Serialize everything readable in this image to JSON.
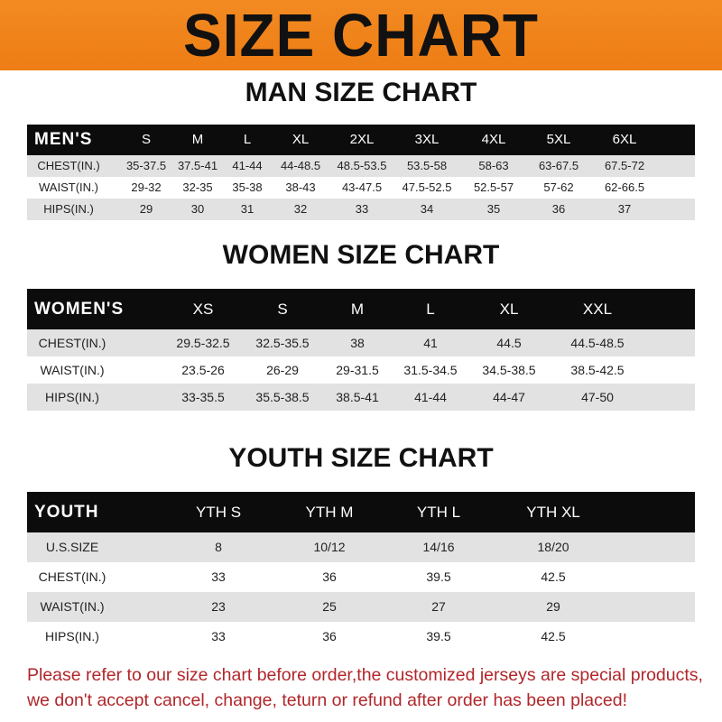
{
  "banner": {
    "title": "SIZE CHART",
    "color": "#ef8219"
  },
  "tables": [
    {
      "title": "MAN SIZE CHART",
      "header_label": "MEN'S",
      "sizes": [
        "S",
        "M",
        "L",
        "XL",
        "2XL",
        "3XL",
        "4XL",
        "5XL",
        "6XL"
      ],
      "rows": [
        {
          "label": "CHEST(IN.)",
          "values": [
            "35-37.5",
            "37.5-41",
            "41-44",
            "44-48.5",
            "48.5-53.5",
            "53.5-58",
            "58-63",
            "63-67.5",
            "67.5-72"
          ]
        },
        {
          "label": "WAIST(IN.)",
          "values": [
            "29-32",
            "32-35",
            "35-38",
            "38-43",
            "43-47.5",
            "47.5-52.5",
            "52.5-57",
            "57-62",
            "62-66.5"
          ]
        },
        {
          "label": "HIPS(IN.)",
          "values": [
            "29",
            "30",
            "31",
            "32",
            "33",
            "34",
            "35",
            "36",
            "37"
          ]
        }
      ]
    },
    {
      "title": "WOMEN SIZE CHART",
      "header_label": "WOMEN'S",
      "sizes": [
        "XS",
        "S",
        "M",
        "L",
        "XL",
        "XXL"
      ],
      "rows": [
        {
          "label": "CHEST(IN.)",
          "values": [
            "29.5-32.5",
            "32.5-35.5",
            "38",
            "41",
            "44.5",
            "44.5-48.5"
          ]
        },
        {
          "label": "WAIST(IN.)",
          "values": [
            "23.5-26",
            "26-29",
            "29-31.5",
            "31.5-34.5",
            "34.5-38.5",
            "38.5-42.5"
          ]
        },
        {
          "label": "HIPS(IN.)",
          "values": [
            "33-35.5",
            "35.5-38.5",
            "38.5-41",
            "41-44",
            "44-47",
            "47-50"
          ]
        }
      ]
    },
    {
      "title": "YOUTH SIZE CHART",
      "header_label": "YOUTH",
      "sizes": [
        "YTH S",
        "YTH M",
        "YTH L",
        "YTH XL"
      ],
      "rows": [
        {
          "label": "U.S.SIZE",
          "values": [
            "8",
            "10/12",
            "14/16",
            "18/20"
          ]
        },
        {
          "label": "CHEST(IN.)",
          "values": [
            "33",
            "36",
            "39.5",
            "42.5"
          ]
        },
        {
          "label": "WAIST(IN.)",
          "values": [
            "23",
            "25",
            "27",
            "29"
          ]
        },
        {
          "label": "HIPS(IN.)",
          "values": [
            "33",
            "36",
            "39.5",
            "42.5"
          ]
        }
      ]
    }
  ],
  "notice": {
    "line1": "Please refer to our size chart before order,the customized jerseys are special products,",
    "line2": "we don't accept cancel, change, teturn or refund after order has been placed!",
    "color": "#b0272b"
  }
}
